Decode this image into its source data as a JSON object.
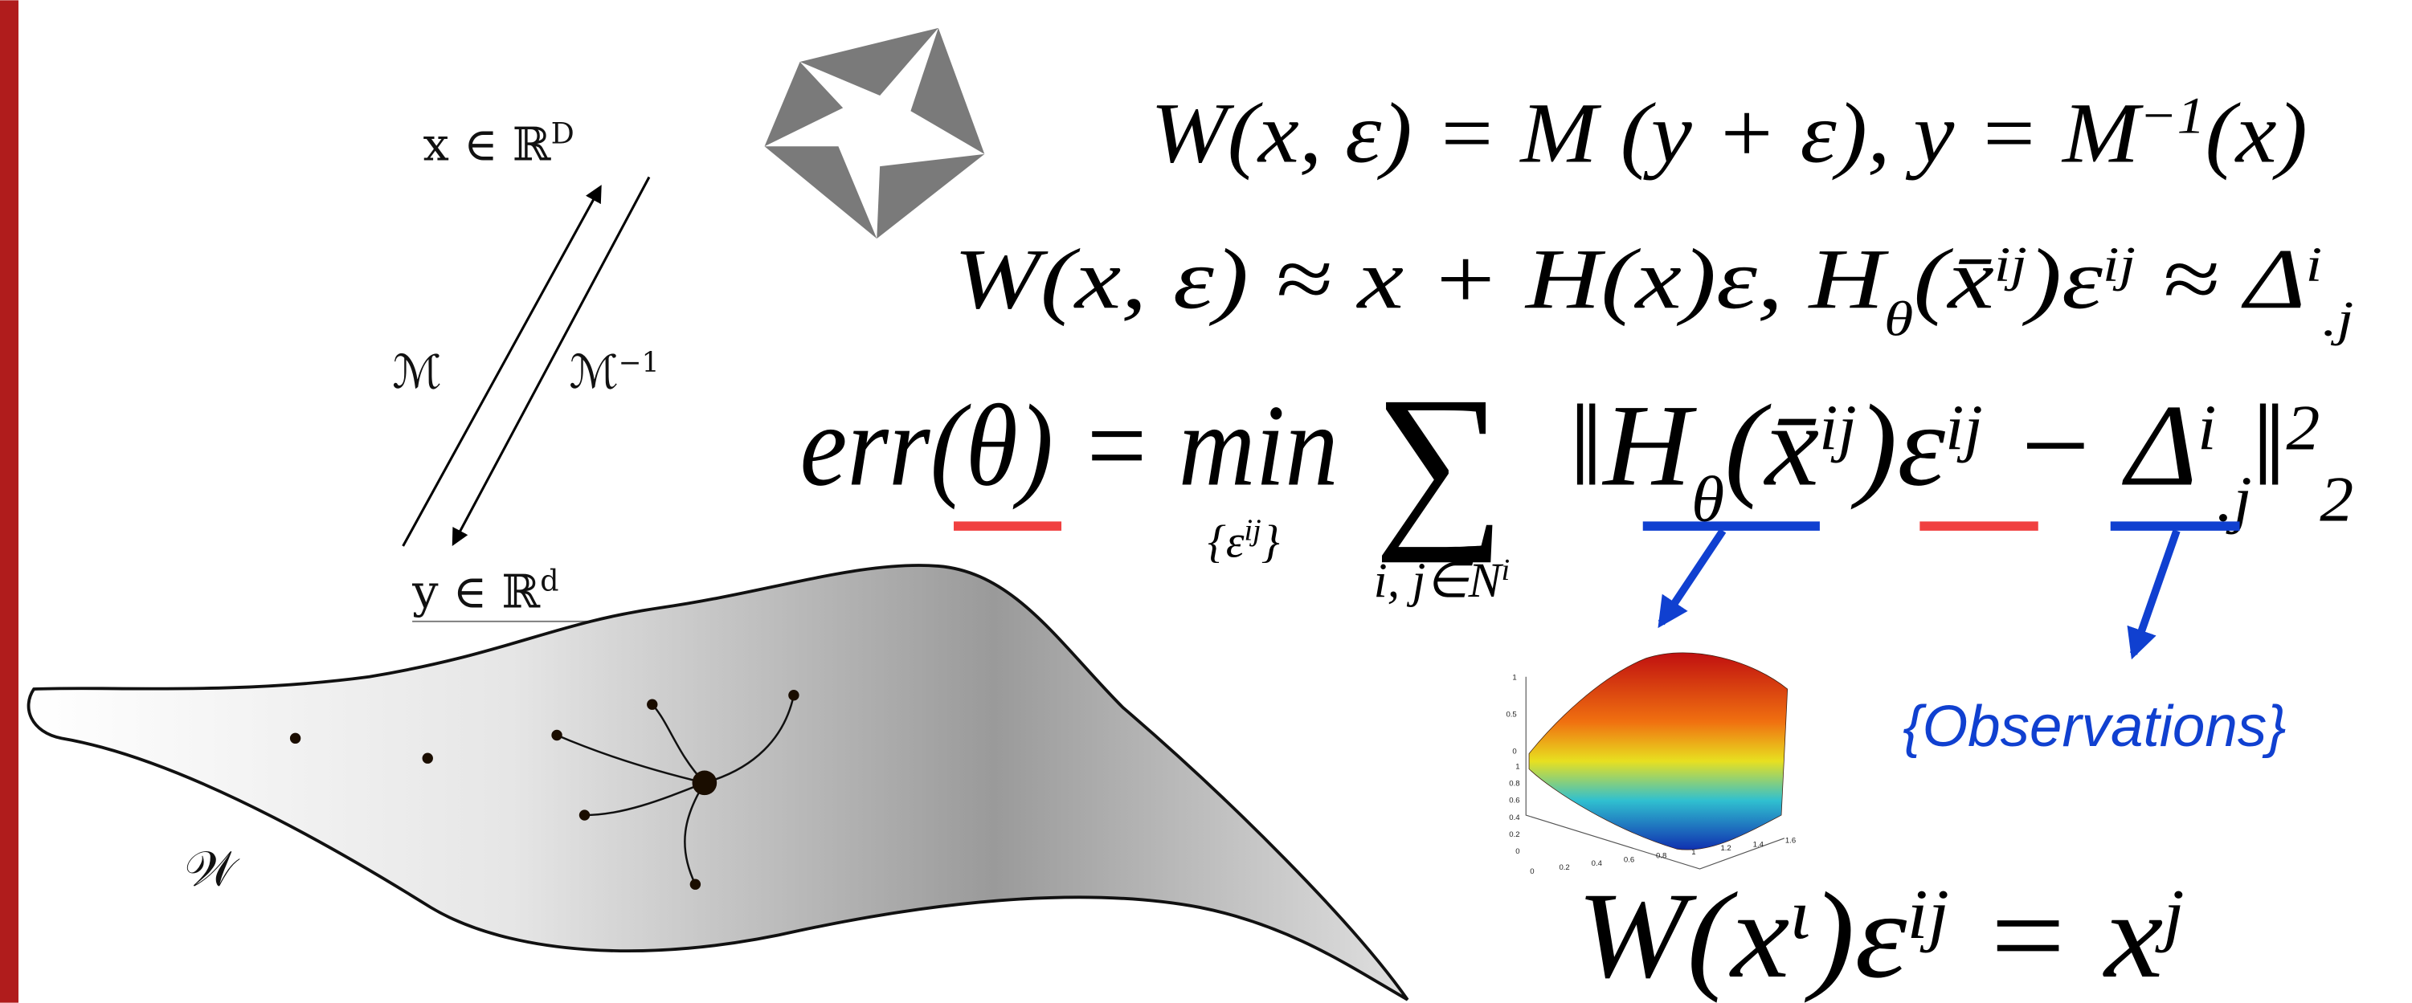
{
  "diagram": {
    "ambient": [
      "x ∈ ℝ",
      "D"
    ],
    "map": "ℳ",
    "inverse_map": [
      "ℳ",
      "−1"
    ],
    "latent": [
      "y ∈ ℝ",
      "d"
    ],
    "manifold": "𝒲"
  },
  "equations": {
    "eq1": [
      "W(x, ε) = M (y + ε),  y = M",
      "−1",
      "(x)"
    ],
    "eq2": [
      "W(x, ε) ≈ x + H(x)ε,  H",
      "θ",
      "(x̄",
      "ij",
      ")ε",
      "ij",
      " ≈ Δ",
      "i",
      ".j"
    ],
    "eq3_head": "err(θ) = min",
    "eq3_min_under": [
      "{ε",
      "ij",
      "}"
    ],
    "eq3_sum": "∑",
    "eq3_sum_under": [
      "i, j∈N",
      "i"
    ],
    "eq3_body": [
      "‖H",
      "θ",
      "(x̄",
      "ij",
      ")ε",
      "ij",
      " − Δ",
      "i",
      ".j",
      "‖",
      "2",
      "2"
    ],
    "eq4": [
      "W(x",
      "ι",
      ")ε",
      "ij",
      " = x",
      "j"
    ]
  },
  "observations": "{Observations}",
  "surface_plot": {
    "z_ticks": [
      "1",
      "0.5",
      "0"
    ],
    "y_ticks": [
      "1",
      "0.8",
      "0.6",
      "0.4",
      "0.2",
      "0"
    ],
    "x_ticks": [
      "0",
      "0.2",
      "0.4",
      "0.6",
      "0.8",
      "1",
      "1.2",
      "1.4",
      "1.6"
    ]
  }
}
